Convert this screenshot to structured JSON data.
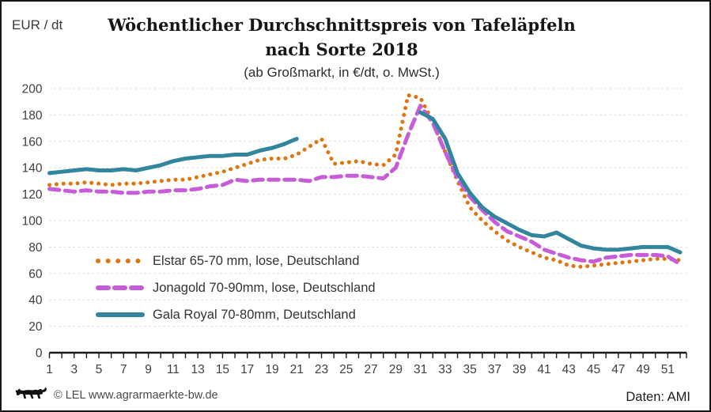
{
  "chart_data": {
    "type": "line",
    "title_line1": "Wöchentlicher Durchschnittspreis von Tafeläpfeln",
    "title_line2": "nach Sorte 2018",
    "subtitle": "(ab Großmarkt, in €/dt, o. MwSt.)",
    "ylabel": "EUR / dt",
    "ylim": [
      0,
      200
    ],
    "y_tick_step": 20,
    "grid": true,
    "legend_position": "inside-left",
    "x": [
      1,
      2,
      3,
      4,
      5,
      6,
      7,
      8,
      9,
      10,
      11,
      12,
      13,
      14,
      15,
      16,
      17,
      18,
      19,
      20,
      21,
      22,
      23,
      24,
      25,
      26,
      27,
      28,
      29,
      30,
      31,
      32,
      33,
      34,
      35,
      36,
      37,
      38,
      39,
      40,
      41,
      42,
      43,
      44,
      45,
      46,
      47,
      48,
      49,
      50,
      51,
      52
    ],
    "x_tick_labels": [
      1,
      3,
      5,
      7,
      9,
      11,
      13,
      15,
      17,
      19,
      21,
      23,
      25,
      27,
      29,
      31,
      33,
      35,
      37,
      39,
      41,
      43,
      45,
      47,
      49,
      51
    ],
    "series": [
      {
        "name": "Elstar 65-70 mm, lose, Deutschland",
        "color": "#E0750F",
        "style": "dotted",
        "values": [
          127,
          128,
          128,
          129,
          128,
          127,
          128,
          128,
          129,
          130,
          131,
          131,
          133,
          135,
          137,
          140,
          143,
          146,
          147,
          147,
          150,
          156,
          162,
          143,
          144,
          145,
          143,
          142,
          150,
          195,
          193,
          175,
          152,
          130,
          110,
          100,
          92,
          85,
          80,
          76,
          72,
          70,
          66,
          65,
          66,
          67,
          68,
          69,
          70,
          71,
          71,
          70
        ]
      },
      {
        "name": "Jonagold 70-90mm, lose, Deutschland",
        "color": "#C75CD8",
        "style": "dashed",
        "values": [
          124,
          123,
          122,
          123,
          122,
          122,
          121,
          121,
          122,
          122,
          123,
          123,
          124,
          126,
          127,
          131,
          130,
          131,
          131,
          131,
          131,
          130,
          133,
          133,
          134,
          134,
          133,
          132,
          140,
          165,
          187,
          174,
          152,
          132,
          118,
          108,
          99,
          92,
          88,
          84,
          78,
          75,
          72,
          70,
          69,
          72,
          73,
          74,
          74,
          74,
          73,
          67
        ]
      },
      {
        "name": "Gala Royal 70-80mm, Deutschland",
        "color": "#31859C",
        "style": "solid",
        "values": [
          136,
          137,
          138,
          139,
          138,
          138,
          139,
          138,
          140,
          142,
          145,
          147,
          148,
          149,
          149,
          150,
          150,
          153,
          155,
          158,
          162,
          null,
          null,
          null,
          null,
          null,
          null,
          null,
          null,
          null,
          182,
          177,
          162,
          136,
          121,
          110,
          103,
          98,
          93,
          89,
          88,
          91,
          86,
          81,
          79,
          78,
          78,
          79,
          80,
          80,
          80,
          76
        ]
      }
    ]
  },
  "footer": {
    "copyright": "© LEL www.agrarmaerkte-bw.de",
    "source": "Daten: AMI"
  }
}
